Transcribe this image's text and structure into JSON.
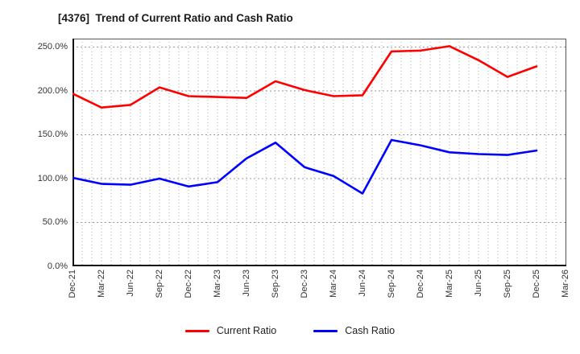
{
  "title": "[4376]  Trend of Current Ratio and Cash Ratio",
  "legend": {
    "current_ratio_label": "Current Ratio",
    "cash_ratio_label": "Cash Ratio"
  },
  "chart_data": {
    "type": "line",
    "title": "[4376]  Trend of Current Ratio and Cash Ratio",
    "x_tick_labels": [
      "Dec-21",
      "Mar-22",
      "Jun-22",
      "Sep-22",
      "Dec-22",
      "Mar-23",
      "Jun-23",
      "Sep-23",
      "Dec-23",
      "Mar-24",
      "Jun-24",
      "Sep-24",
      "Dec-24",
      "Mar-25",
      "Jun-25",
      "Sep-25",
      "Dec-25",
      "Mar-26"
    ],
    "y_tick_labels": [
      "250.0%",
      "200.0%",
      "150.0%",
      "100.0%",
      "50.0%",
      "0.0%"
    ],
    "y_tick_values": [
      250,
      200,
      150,
      100,
      50,
      0
    ],
    "ylim": [
      0,
      260
    ],
    "grid": "dotted, monthly vertical lines and 50% horizontal lines",
    "legend_position": "bottom-center",
    "series": [
      {
        "name": "Current Ratio",
        "color": "#ff0000",
        "values": [
          197,
          181,
          184,
          204,
          194,
          193,
          192,
          211,
          201,
          194,
          195,
          245,
          246,
          251,
          235,
          216,
          228
        ]
      },
      {
        "name": "Cash Ratio",
        "color": "#0000ff",
        "values": [
          101,
          94,
          93,
          100,
          91,
          96,
          123,
          141,
          113,
          103,
          83,
          144,
          138,
          130,
          128,
          127,
          132
        ]
      }
    ],
    "note_axis_colors": {
      "axis": "#111111",
      "frame": "#555555",
      "grid": "#aaaaaa",
      "tick_text": "#333333"
    }
  }
}
